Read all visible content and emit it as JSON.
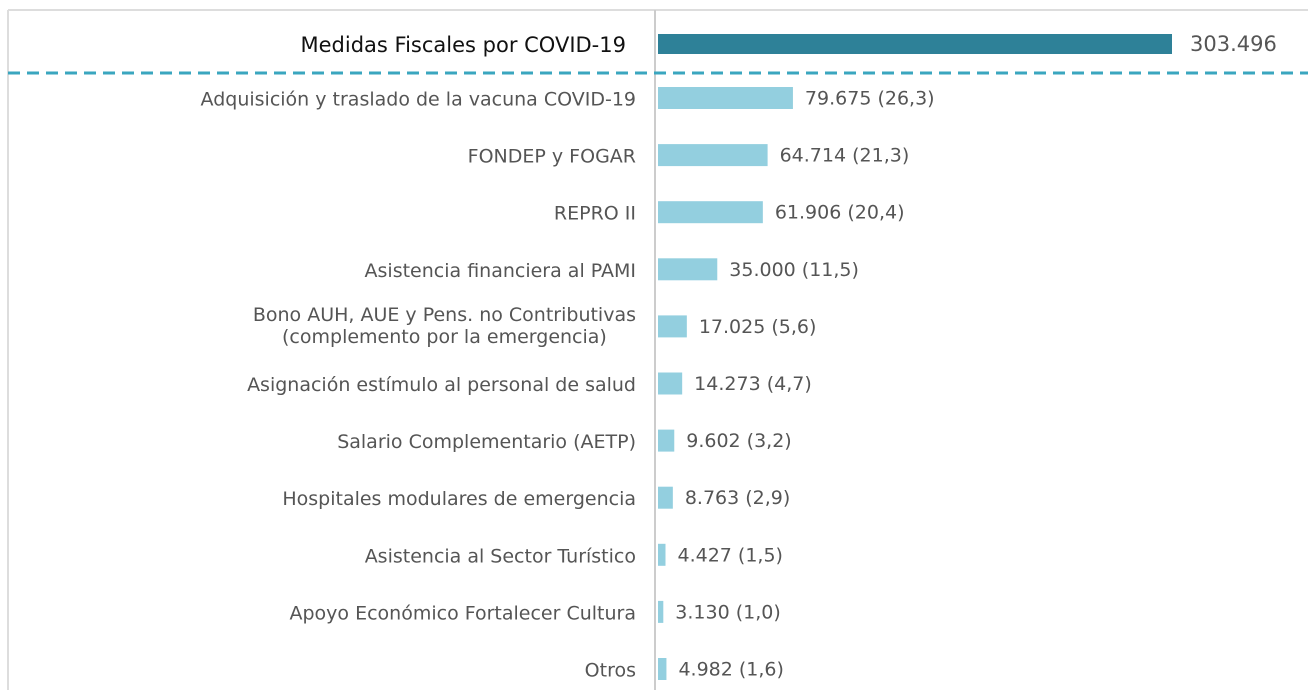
{
  "chart_data": {
    "type": "bar",
    "orientation": "horizontal",
    "categories": [
      "Medidas Fiscales por COVID-19",
      "Adquisición y traslado de la vacuna COVID-19",
      "FONDEP y FOGAR",
      "REPRO II",
      "Asistencia financiera al PAMI",
      [
        "Bono AUH, AUE y Pens. no Contributivas",
        "(complemento por la emergencia)"
      ],
      "Asignación estímulo al personal de salud",
      "Salario Complementario (AETP)",
      "Hospitales modulares de emergencia",
      "Asistencia al Sector Turístico",
      "Apoyo Económico Fortalecer Cultura",
      "Otros"
    ],
    "values": [
      303496,
      79675,
      64714,
      61906,
      35000,
      17025,
      14273,
      9602,
      8763,
      4427,
      3130,
      4982
    ],
    "value_labels": [
      "303.496",
      "79.675 (26,3)",
      "64.714 (21,3)",
      "61.906 (20,4)",
      "35.000 (11,5)",
      "17.025 (5,6)",
      "14.273 (4,7)",
      "9.602 (3,2)",
      "8.763 (2,9)",
      "4.427 (1,5)",
      "3.130 (1,0)",
      "4.982 (1,6)"
    ],
    "colors": [
      "#2e8198",
      "#93cfdf",
      "#93cfdf",
      "#93cfdf",
      "#93cfdf",
      "#93cfdf",
      "#93cfdf",
      "#93cfdf",
      "#93cfdf",
      "#93cfdf",
      "#93cfdf",
      "#93cfdf"
    ]
  }
}
